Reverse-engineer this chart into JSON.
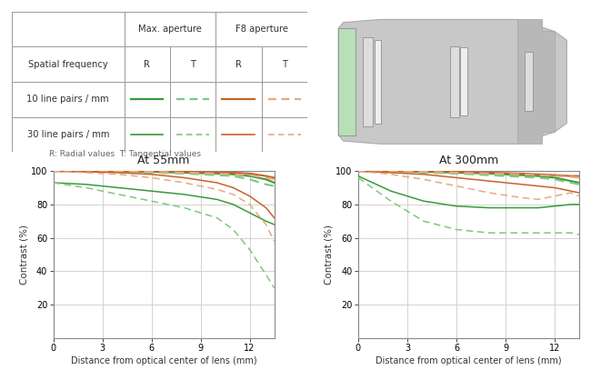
{
  "title_55": "At 55mm",
  "title_300": "At 300mm",
  "xlabel": "Distance from optical center of lens (mm)",
  "ylabel": "Contrast (%)",
  "xlim": [
    0,
    13.5
  ],
  "ylim": [
    0,
    100
  ],
  "xticks": [
    0,
    3,
    6,
    9,
    12
  ],
  "yticks": [
    20,
    40,
    60,
    80,
    100
  ],
  "bg_color": "#ffffff",
  "grid_color": "#cccccc",
  "colors": {
    "green_solid": "#3a9a3a",
    "green_dashed": "#7dc87d",
    "orange_solid": "#c8622a",
    "orange_dashed": "#e8a882"
  },
  "note": "R: Radial values  T: Tangential values",
  "x_pts": [
    0,
    2,
    4,
    6,
    8,
    10,
    11,
    12,
    13,
    13.5
  ],
  "curves_55": {
    "max_10R": [
      100,
      100,
      99.8,
      99.5,
      99,
      98.5,
      98,
      97,
      95,
      93
    ],
    "max_10T": [
      100,
      100,
      99.5,
      99,
      98.5,
      97.5,
      97,
      95,
      92,
      91
    ],
    "max_30R": [
      93,
      92,
      90,
      88,
      86,
      83,
      80,
      75,
      70,
      68
    ],
    "max_30T": [
      93,
      90,
      86,
      82,
      78,
      72,
      65,
      53,
      38,
      30
    ],
    "f8_10R": [
      100,
      100,
      100,
      100,
      99.5,
      99,
      99,
      98.5,
      97,
      96
    ],
    "f8_10T": [
      100,
      100,
      100,
      99.5,
      99,
      98.5,
      98,
      97.5,
      96,
      95
    ],
    "f8_30R": [
      100,
      99.5,
      99,
      98,
      96,
      93,
      90,
      85,
      78,
      72
    ],
    "f8_30T": [
      100,
      99,
      98,
      96,
      93,
      89,
      86,
      80,
      68,
      58
    ]
  },
  "curves_300": {
    "max_10R": [
      100,
      100,
      99.5,
      99,
      98.5,
      97.5,
      97,
      96,
      94,
      93
    ],
    "max_10T": [
      100,
      100,
      99,
      98.5,
      97.5,
      96.5,
      96,
      95,
      93,
      92
    ],
    "max_30R": [
      97,
      88,
      82,
      79,
      78,
      78,
      78,
      79,
      80,
      80
    ],
    "max_30T": [
      96,
      82,
      70,
      65,
      63,
      63,
      63,
      63,
      63,
      62
    ],
    "f8_10R": [
      100,
      100,
      100,
      99.5,
      99,
      98.5,
      98,
      97.5,
      97,
      97
    ],
    "f8_10T": [
      100,
      100,
      99.5,
      99,
      98.5,
      98,
      97.5,
      97,
      96.5,
      96
    ],
    "f8_30R": [
      100,
      99,
      98,
      96,
      94,
      92,
      91,
      90,
      88,
      87
    ],
    "f8_30T": [
      100,
      98,
      95,
      91,
      87,
      84,
      83,
      85,
      87,
      85
    ]
  }
}
